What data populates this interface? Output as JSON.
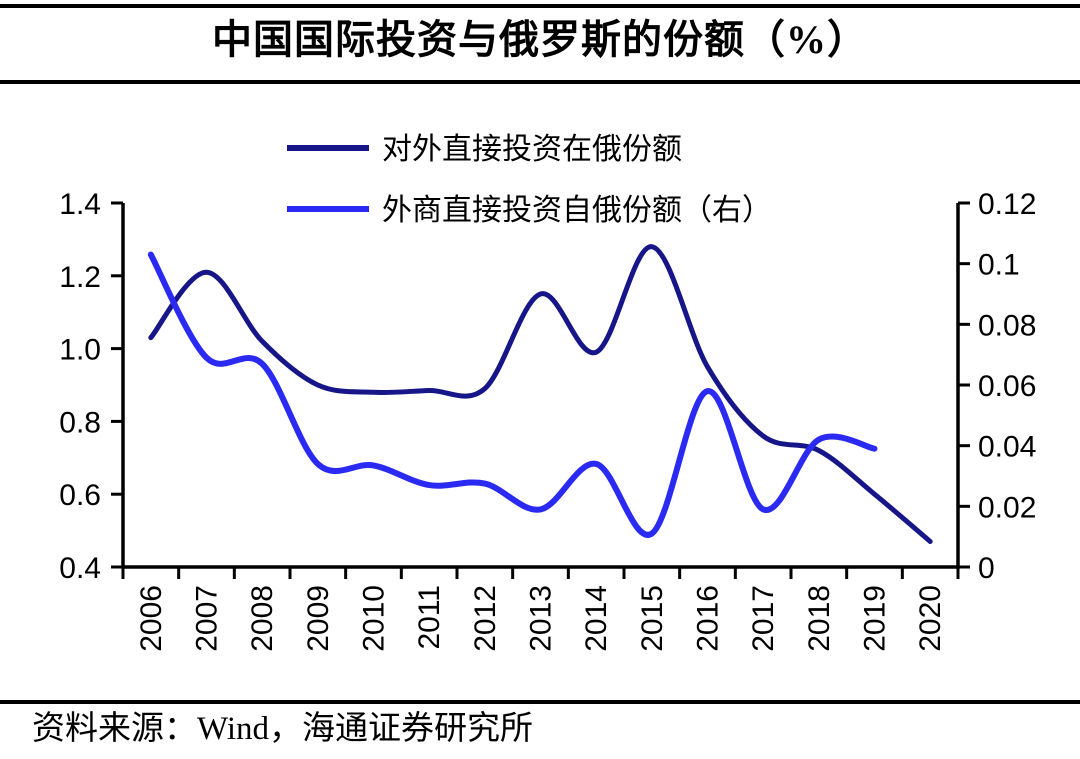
{
  "title": "中国国际投资与俄罗斯的份额（%）",
  "source": "资料来源：Wind，海通证券研究所",
  "colors": {
    "dark_series": "#161689",
    "light_series": "#2A2AF2",
    "axis": "#000000",
    "background": "#FFFFFF"
  },
  "legend": [
    {
      "label": "对外直接投资在俄份额",
      "color": "#161689"
    },
    {
      "label": "外商直接投资自俄份额（右）",
      "color": "#2A2AF2"
    }
  ],
  "chart_data": {
    "type": "line",
    "title": "中国国际投资与俄罗斯的份额（%）",
    "x": [
      "2006",
      "2007",
      "2008",
      "2009",
      "2010",
      "2011",
      "2012",
      "2013",
      "2014",
      "2015",
      "2016",
      "2017",
      "2018",
      "2019",
      "2020"
    ],
    "axes": {
      "left": {
        "min": 0.4,
        "max": 1.4,
        "ticks": [
          {
            "v": 1.4,
            "label": "1.4"
          },
          {
            "v": 1.2,
            "label": "1.2"
          },
          {
            "v": 1.0,
            "label": "1.0"
          },
          {
            "v": 0.8,
            "label": "0.8"
          },
          {
            "v": 0.6,
            "label": "0.6"
          },
          {
            "v": 0.4,
            "label": "0.4"
          }
        ]
      },
      "right": {
        "min": 0,
        "max": 0.12,
        "ticks": [
          {
            "v": 0.12,
            "label": "0.12"
          },
          {
            "v": 0.1,
            "label": "0.1"
          },
          {
            "v": 0.08,
            "label": "0.08"
          },
          {
            "v": 0.06,
            "label": "0.06"
          },
          {
            "v": 0.04,
            "label": "0.04"
          },
          {
            "v": 0.02,
            "label": "0.02"
          },
          {
            "v": 0,
            "label": "0"
          }
        ]
      }
    },
    "series": [
      {
        "name": "对外直接投资在俄份额",
        "axis": "left",
        "color": "#161689",
        "stroke_width": 5,
        "values": [
          1.03,
          1.21,
          1.02,
          0.9,
          0.88,
          0.885,
          0.89,
          1.15,
          0.99,
          1.28,
          0.95,
          0.76,
          0.72,
          0.6,
          0.47
        ]
      },
      {
        "name": "外商直接投资自俄份额（右）",
        "axis": "right",
        "color": "#2A2AF2",
        "stroke_width": 6,
        "values": [
          0.103,
          0.069,
          0.067,
          0.034,
          0.0335,
          0.027,
          0.0275,
          0.019,
          0.034,
          0.011,
          0.058,
          0.019,
          0.042,
          0.039
        ]
      }
    ],
    "legend_position": "top-center",
    "grid": false
  }
}
